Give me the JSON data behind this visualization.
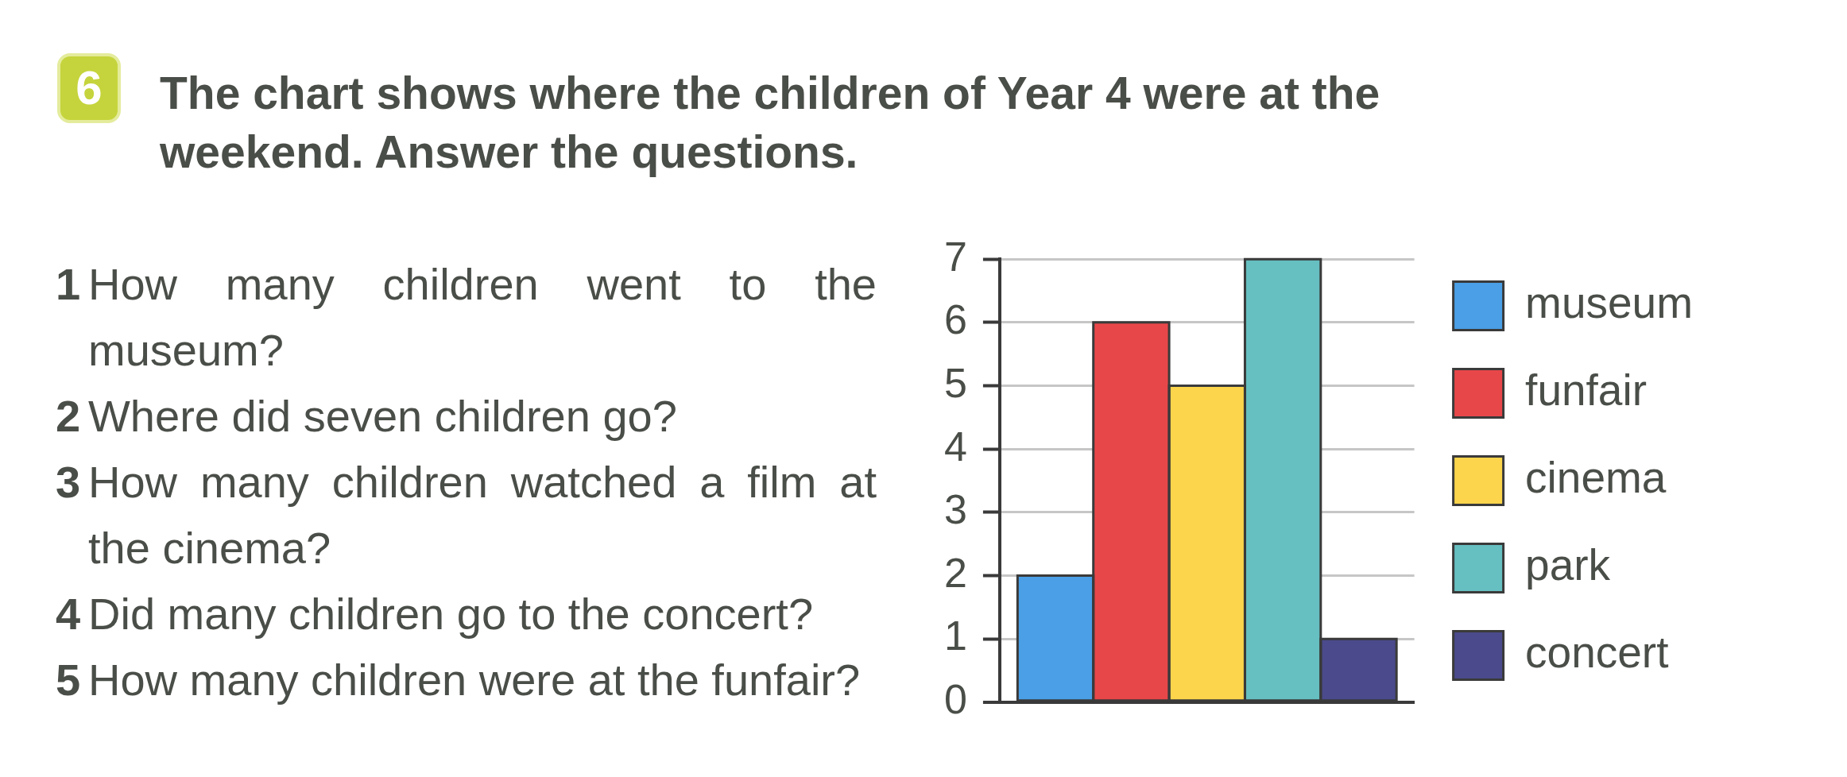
{
  "chart_data": {
    "type": "bar",
    "title": "The chart shows where the children of Year 4 were at the weekend. Answer the questions.",
    "annotations": [
      "6",
      "1 How many children went to the museum?",
      "2 Where did seven children go?",
      "3 How many children watched a film at the cinema?",
      "4 Did many children go to the concert?",
      "5 How many children were at the funfair?"
    ],
    "categories": [
      null
    ],
    "series": [
      {
        "name": "museum",
        "color": "#4a9fe6",
        "values": [
          2
        ]
      },
      {
        "name": "funfair",
        "color": "#e8474a",
        "values": [
          6
        ]
      },
      {
        "name": "cinema",
        "color": "#fcd54c",
        "values": [
          5
        ]
      },
      {
        "name": "park",
        "color": "#66bfc0",
        "values": [
          7
        ]
      },
      {
        "name": "concert",
        "color": "#4a4a8c",
        "values": [
          1
        ]
      }
    ],
    "ylim": [
      0,
      7
    ],
    "yticks": [
      0,
      1,
      2,
      3,
      4,
      5,
      6,
      7
    ],
    "grid": "y",
    "legend": "right"
  }
}
